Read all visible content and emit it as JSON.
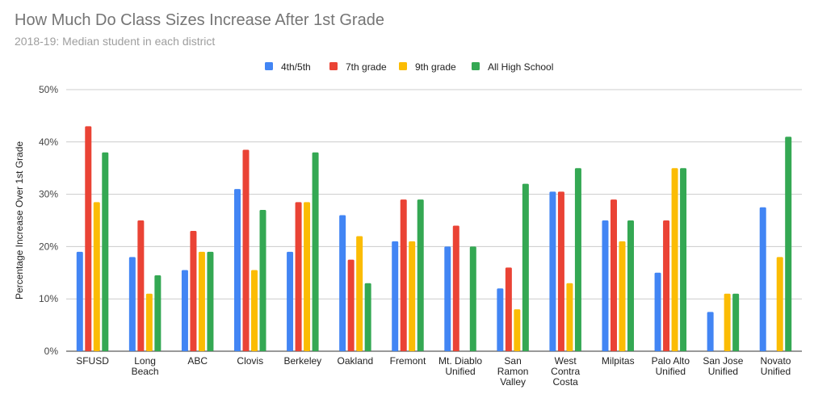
{
  "chart_data": {
    "type": "bar",
    "title": "How Much Do Class Sizes Increase After 1st Grade",
    "subtitle": "2018-19: Median student in each district",
    "xlabel": "",
    "ylabel": "Percentage Increase Over 1st Grade",
    "ylim": [
      0,
      50
    ],
    "yticks": [
      0,
      10,
      20,
      30,
      40,
      50
    ],
    "ytick_labels": [
      "0%",
      "10%",
      "20%",
      "30%",
      "40%",
      "50%"
    ],
    "grid": true,
    "legend_position": "top",
    "categories": [
      "SFUSD",
      "Long Beach",
      "ABC",
      "Clovis",
      "Berkeley",
      "Oakland",
      "Fremont",
      "Mt. Diablo Unified",
      "San Ramon Valley",
      "West Contra Costa",
      "Milpitas",
      "Palo Alto Unified",
      "San Jose Unified",
      "Novato Unified"
    ],
    "category_labels": [
      [
        "SFUSD"
      ],
      [
        "Long",
        "Beach"
      ],
      [
        "ABC"
      ],
      [
        "Clovis"
      ],
      [
        "Berkeley"
      ],
      [
        "Oakland"
      ],
      [
        "Fremont"
      ],
      [
        "Mt. Diablo",
        "Unified"
      ],
      [
        "San",
        "Ramon",
        "Valley"
      ],
      [
        "West",
        "Contra",
        "Costa"
      ],
      [
        "Milpitas"
      ],
      [
        "Palo Alto",
        "Unified"
      ],
      [
        "San Jose",
        "Unified"
      ],
      [
        "Novato",
        "Unified"
      ]
    ],
    "series": [
      {
        "name": "4th/5th",
        "color": "#4285f4",
        "values": [
          19,
          18,
          15.5,
          31,
          19,
          26,
          21,
          20,
          12,
          30.5,
          25,
          15,
          7.5,
          27.5
        ]
      },
      {
        "name": "7th grade",
        "color": "#ea4335",
        "values": [
          43,
          25,
          23,
          38.5,
          28.5,
          17.5,
          29,
          24,
          16,
          30.5,
          29,
          25,
          null,
          null
        ]
      },
      {
        "name": "9th grade",
        "color": "#fbbc04",
        "values": [
          28.5,
          11,
          19,
          15.5,
          28.5,
          22,
          21,
          null,
          8,
          13,
          21,
          35,
          11,
          18
        ]
      },
      {
        "name": "All High School",
        "color": "#34a853",
        "values": [
          38,
          14.5,
          19,
          27,
          38,
          13,
          29,
          20,
          32,
          35,
          25,
          35,
          11,
          41
        ]
      }
    ]
  }
}
